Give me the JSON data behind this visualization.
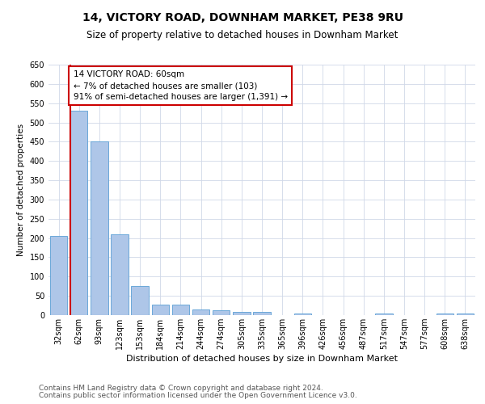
{
  "title": "14, VICTORY ROAD, DOWNHAM MARKET, PE38 9RU",
  "subtitle": "Size of property relative to detached houses in Downham Market",
  "xlabel": "Distribution of detached houses by size in Downham Market",
  "ylabel": "Number of detached properties",
  "categories": [
    "32sqm",
    "62sqm",
    "93sqm",
    "123sqm",
    "153sqm",
    "184sqm",
    "214sqm",
    "244sqm",
    "274sqm",
    "305sqm",
    "335sqm",
    "365sqm",
    "396sqm",
    "426sqm",
    "456sqm",
    "487sqm",
    "517sqm",
    "547sqm",
    "577sqm",
    "608sqm",
    "638sqm"
  ],
  "values": [
    205,
    530,
    450,
    210,
    75,
    27,
    27,
    15,
    12,
    8,
    8,
    0,
    5,
    0,
    0,
    0,
    5,
    0,
    0,
    5,
    5
  ],
  "bar_color": "#aec6e8",
  "bar_edge_color": "#5a9fd4",
  "annotation_text": "14 VICTORY ROAD: 60sqm\n← 7% of detached houses are smaller (103)\n91% of semi-detached houses are larger (1,391) →",
  "annotation_box_color": "#ffffff",
  "annotation_box_edge_color": "#cc0000",
  "vline_color": "#cc0000",
  "vline_x": 0.57,
  "ylim": [
    0,
    650
  ],
  "yticks": [
    0,
    50,
    100,
    150,
    200,
    250,
    300,
    350,
    400,
    450,
    500,
    550,
    600,
    650
  ],
  "footer_line1": "Contains HM Land Registry data © Crown copyright and database right 2024.",
  "footer_line2": "Contains public sector information licensed under the Open Government Licence v3.0.",
  "background_color": "#ffffff",
  "grid_color": "#d0d8e8",
  "title_fontsize": 10,
  "subtitle_fontsize": 8.5,
  "xlabel_fontsize": 8,
  "ylabel_fontsize": 7.5,
  "tick_fontsize": 7,
  "annot_fontsize": 7.5,
  "footer_fontsize": 6.5
}
